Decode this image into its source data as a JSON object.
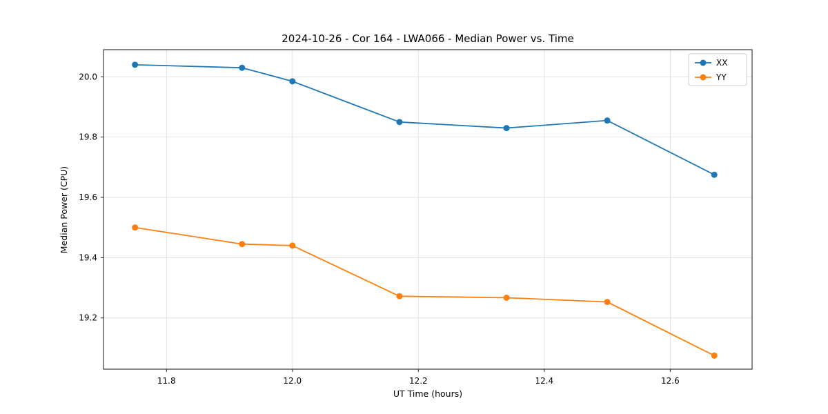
{
  "chart_data": {
    "type": "line",
    "title": "2024-10-26 - Cor 164 - LWA066 - Median Power vs. Time",
    "xlabel": "UT Time (hours)",
    "ylabel": "Median Power (CPU)",
    "xlim": [
      11.7,
      12.73
    ],
    "ylim": [
      19.03,
      20.09
    ],
    "xticks": [
      11.8,
      12.0,
      12.2,
      12.4,
      12.6
    ],
    "xtick_labels": [
      "11.8",
      "12.0",
      "12.2",
      "12.4",
      "12.6"
    ],
    "yticks": [
      19.2,
      19.4,
      19.6,
      19.8,
      20.0
    ],
    "ytick_labels": [
      "19.2",
      "19.4",
      "19.6",
      "19.8",
      "20.0"
    ],
    "x": [
      11.75,
      11.92,
      12.0,
      12.17,
      12.34,
      12.5,
      12.67
    ],
    "series": [
      {
        "name": "XX",
        "color": "#1f77b4",
        "values": [
          20.04,
          20.03,
          19.985,
          19.85,
          19.83,
          19.855,
          19.675
        ]
      },
      {
        "name": "YY",
        "color": "#ff7f0e",
        "values": [
          19.5,
          19.445,
          19.44,
          19.272,
          19.267,
          19.253,
          19.075
        ]
      }
    ],
    "grid": true,
    "grid_color": "#e0e0e0",
    "spine_color": "#262626",
    "legend_position": "upper right",
    "marker": "circle",
    "background": "#ffffff"
  }
}
